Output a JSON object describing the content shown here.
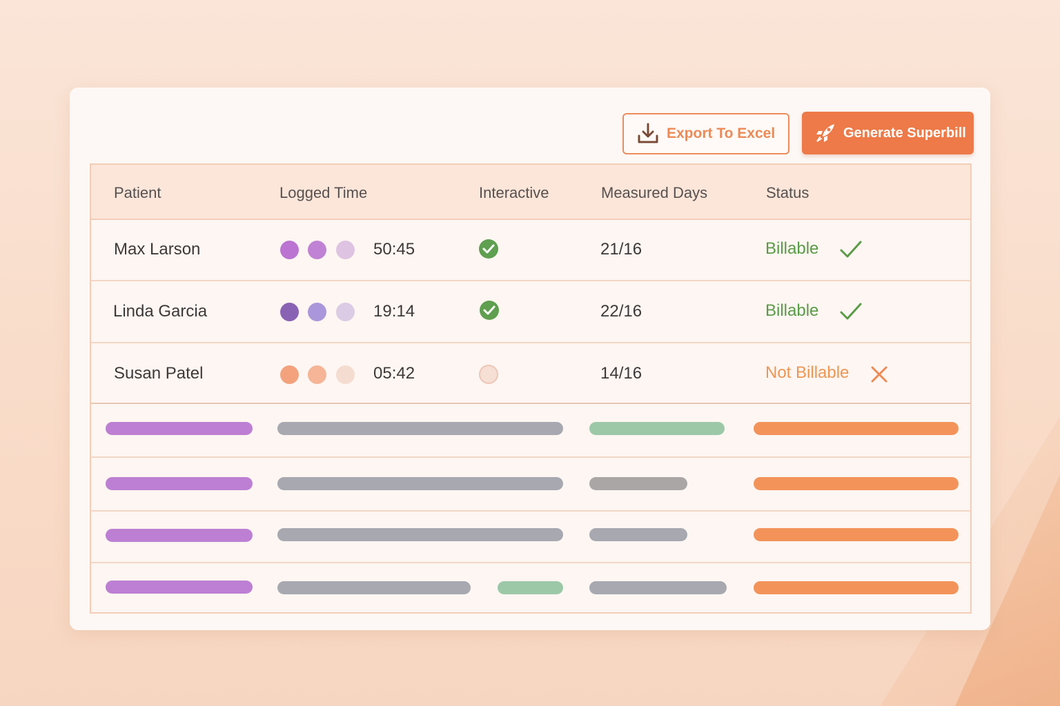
{
  "toolbar": {
    "export_label": "Export To Excel",
    "generate_label": "Generate Superbill"
  },
  "columns": [
    "Patient",
    "Logged Time",
    "Interactive",
    "Measured Days",
    "Status"
  ],
  "rows": [
    {
      "patient": "Max Larson",
      "dots": [
        "#bb74d2",
        "#c082d4",
        "#dec3e2"
      ],
      "time": "50:45",
      "interactive": true,
      "days": "21/16",
      "status": "Billable",
      "status_color": "#5a9a46"
    },
    {
      "patient": "Linda Garcia",
      "dots": [
        "#8a62b4",
        "#aa96da",
        "#dccbe4"
      ],
      "time": "19:14",
      "interactive": true,
      "days": "22/16",
      "status": "Billable",
      "status_color": "#5a9a46"
    },
    {
      "patient": "Susan Patel",
      "dots": [
        "#f3a27d",
        "#f5b596",
        "#f5dcd0"
      ],
      "time": "05:42",
      "interactive": false,
      "days": "14/16",
      "status": "Not Billable",
      "status_color": "#ef9553"
    }
  ],
  "colors": {
    "accent": "#ed7a48",
    "check_green": "#5f9f50",
    "purple_bar": "#bd7fd3",
    "gray_bar": "#a7a8b0",
    "green_bar": "#9cc8a8",
    "orange_bar": "#f3935a"
  }
}
